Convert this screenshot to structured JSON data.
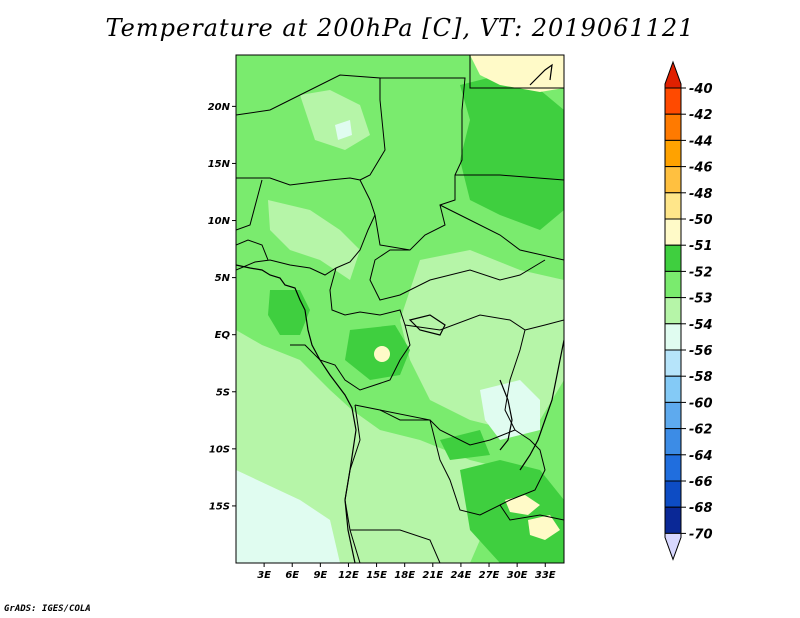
{
  "title": "Temperature at 200hPa [C], VT: 2019061121",
  "footer": "GrADS: IGES/COLA",
  "map": {
    "lat_labels": [
      "20N",
      "15N",
      "10N",
      "5N",
      "EQ",
      "5S",
      "10S",
      "15S"
    ],
    "lat_values": [
      20,
      15,
      10,
      5,
      0,
      -5,
      -10,
      -15
    ],
    "lon_labels": [
      "3E",
      "6E",
      "9E",
      "12E",
      "15E",
      "18E",
      "21E",
      "24E",
      "27E",
      "30E",
      "33E"
    ],
    "lon_values": [
      3,
      6,
      9,
      12,
      15,
      18,
      21,
      24,
      27,
      30,
      33
    ],
    "lon_range": [
      0,
      35
    ],
    "lat_range": [
      -20,
      24.5
    ]
  },
  "colorbar": {
    "levels": [
      {
        "label": "-40",
        "color": "#f02000"
      },
      {
        "label": "-42",
        "color": "#ff4a00"
      },
      {
        "label": "-44",
        "color": "#ff7a00"
      },
      {
        "label": "-46",
        "color": "#ffa200"
      },
      {
        "label": "-48",
        "color": "#ffc040"
      },
      {
        "label": "-50",
        "color": "#ffe68a"
      },
      {
        "label": "-51",
        "color": "#fffac8"
      },
      {
        "label": "-52",
        "color": "#3fcf3f"
      },
      {
        "label": "-53",
        "color": "#7aeb6e"
      },
      {
        "label": "-54",
        "color": "#b6f5a8"
      },
      {
        "label": "-56",
        "color": "#e0fcf0"
      },
      {
        "label": "-58",
        "color": "#b6e4fa"
      },
      {
        "label": "-60",
        "color": "#84caf6"
      },
      {
        "label": "-62",
        "color": "#5eaaee"
      },
      {
        "label": "-64",
        "color": "#3c8ce6"
      },
      {
        "label": "-66",
        "color": "#206ede"
      },
      {
        "label": "-68",
        "color": "#0d4cc4"
      },
      {
        "label": "-70",
        "color": "#0a2896"
      }
    ],
    "top_arrow_color": "#e02000",
    "bottom_arrow_color": "#d8d8ff"
  }
}
